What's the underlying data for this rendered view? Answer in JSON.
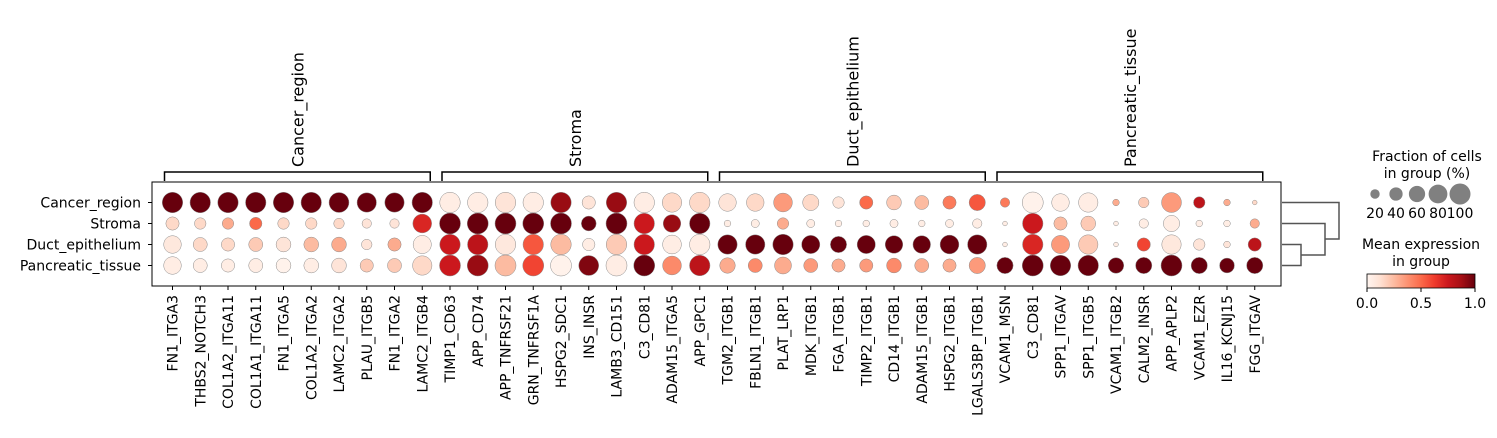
{
  "chart_data": {
    "type": "dotplot",
    "groups": [
      "Cancer_region",
      "Stroma",
      "Duct_epithelium",
      "Pancreatic_tissue"
    ],
    "genes": [
      "FN1_ITGA3",
      "THBS2_NOTCH3",
      "COL1A2_ITGA11",
      "COL1A1_ITGA11",
      "FN1_ITGA5",
      "COL1A2_ITGA2",
      "LAMC2_ITGA2",
      "PLAU_ITGB5",
      "FN1_ITGA2",
      "LAMC2_ITGB4",
      "TIMP1_CD63",
      "APP_CD74",
      "APP_TNFRSF21",
      "GRN_TNFRSF1A",
      "HSPG2_SDC1",
      "INS_INSR",
      "LAMB3_CD151",
      "C3_CD81",
      "ADAM15_ITGA5",
      "APP_GPC1",
      "TGM2_ITGB1",
      "FBLN1_ITGB1",
      "PLAT_LRP1",
      "MDK_ITGB1",
      "FGA_ITGB1",
      "TIMP2_ITGB1",
      "CD14_ITGB1",
      "ADAM15_ITGB1",
      "HSPG2_ITGB1",
      "LGALS3BP_ITGB1",
      "VCAM1_MSN",
      "C3_CD81",
      "SPP1_ITGAV",
      "SPP1_ITGB5",
      "VCAM1_ITGB2",
      "CALM2_INSR",
      "APP_APLP2",
      "VCAM1_EZR",
      "IL16_KCNJ15",
      "FGG_ITGAV"
    ],
    "gene_groups": [
      {
        "label": "Cancer_region",
        "start": 0,
        "end": 9
      },
      {
        "label": "Stroma",
        "start": 10,
        "end": 19
      },
      {
        "label": "Duct_epithelium",
        "start": 20,
        "end": 29
      },
      {
        "label": "Pancreatic_tissue",
        "start": 30,
        "end": 39
      }
    ],
    "fraction_pct": [
      [
        95,
        95,
        95,
        95,
        95,
        95,
        90,
        85,
        85,
        95,
        95,
        95,
        95,
        95,
        95,
        40,
        95,
        95,
        85,
        95,
        70,
        70,
        80,
        60,
        30,
        40,
        50,
        45,
        40,
        60,
        20,
        100,
        70,
        85,
        10,
        25,
        90,
        30,
        10,
        5
      ],
      [
        40,
        30,
        30,
        35,
        30,
        30,
        25,
        20,
        20,
        80,
        100,
        100,
        100,
        100,
        100,
        50,
        100,
        95,
        70,
        95,
        10,
        15,
        30,
        15,
        10,
        10,
        15,
        10,
        15,
        20,
        5,
        95,
        40,
        50,
        5,
        20,
        60,
        10,
        10,
        20
      ],
      [
        70,
        45,
        40,
        45,
        50,
        50,
        50,
        25,
        40,
        75,
        95,
        95,
        95,
        95,
        95,
        35,
        95,
        95,
        80,
        95,
        85,
        85,
        95,
        75,
        60,
        75,
        70,
        70,
        80,
        85,
        5,
        95,
        75,
        85,
        5,
        40,
        85,
        30,
        10,
        40
      ],
      [
        70,
        45,
        40,
        45,
        50,
        50,
        50,
        40,
        45,
        85,
        100,
        100,
        100,
        100,
        100,
        90,
        100,
        100,
        80,
        95,
        55,
        45,
        65,
        45,
        40,
        40,
        50,
        45,
        40,
        60,
        60,
        100,
        95,
        95,
        55,
        60,
        100,
        60,
        50,
        60
      ]
    ],
    "mean_expr": [
      [
        1.0,
        1.0,
        1.0,
        1.0,
        1.0,
        1.0,
        1.0,
        1.0,
        1.0,
        1.0,
        0.05,
        0.05,
        0.1,
        0.05,
        0.9,
        0.1,
        0.9,
        0.05,
        0.15,
        0.15,
        0.1,
        0.15,
        0.35,
        0.15,
        0.1,
        0.5,
        0.2,
        0.25,
        0.45,
        0.55,
        0.45,
        0.02,
        0.05,
        0.05,
        0.3,
        0.2,
        0.35,
        0.8,
        0.3,
        0.15
      ],
      [
        0.15,
        0.15,
        0.3,
        0.5,
        0.15,
        0.15,
        0.15,
        0.1,
        0.1,
        0.7,
        1.0,
        1.0,
        1.0,
        1.0,
        1.0,
        1.0,
        1.0,
        0.75,
        0.9,
        1.0,
        0.05,
        0.05,
        0.3,
        0.05,
        0.05,
        0.05,
        0.05,
        0.05,
        0.05,
        0.05,
        0.05,
        0.75,
        0.25,
        0.2,
        0.05,
        0.05,
        0.05,
        0.05,
        0.05,
        0.3
      ],
      [
        0.08,
        0.15,
        0.15,
        0.2,
        0.1,
        0.25,
        0.3,
        0.1,
        0.3,
        0.05,
        0.75,
        0.8,
        0.08,
        0.55,
        0.25,
        0.05,
        0.2,
        0.75,
        0.05,
        0.05,
        1.0,
        1.0,
        1.0,
        1.0,
        1.0,
        1.0,
        1.0,
        1.0,
        1.0,
        1.0,
        0.05,
        0.7,
        0.35,
        0.2,
        0.05,
        0.6,
        0.08,
        0.1,
        0.1,
        0.8
      ],
      [
        0.05,
        0.05,
        0.05,
        0.05,
        0.02,
        0.05,
        0.1,
        0.2,
        0.2,
        0.15,
        0.75,
        0.9,
        0.25,
        0.6,
        0.02,
        0.95,
        0.05,
        1.0,
        0.4,
        0.8,
        0.3,
        0.4,
        0.3,
        0.35,
        0.3,
        0.35,
        0.4,
        0.3,
        0.3,
        0.35,
        1.0,
        1.0,
        1.0,
        1.0,
        1.0,
        1.0,
        1.0,
        1.0,
        1.0,
        1.0
      ]
    ],
    "dendrogram": "((Cancer_region),(Stroma,(Duct_epithelium,Pancreatic_tissue)))",
    "size_legend": {
      "title_line1": "Fraction of cells",
      "title_line2": "in group (%)",
      "ticks": [
        "20",
        "40",
        "60",
        "80",
        "100"
      ],
      "values": [
        20,
        40,
        60,
        80,
        100
      ]
    },
    "color_legend": {
      "title_line1": "Mean expression",
      "title_line2": "in group",
      "ticks": [
        "0.0",
        "0.5",
        "1.0"
      ],
      "colormap": "Reds",
      "range": [
        0,
        1
      ]
    },
    "colors": {
      "edge": "#8c8c8c",
      "bracket": "#000000",
      "size_legend_dot": "#808080",
      "dendrogram": "#555555",
      "reds": [
        "#fff5f0",
        "#fee0d2",
        "#fcbba1",
        "#fc9272",
        "#fb6a4a",
        "#ef3b2c",
        "#cb181d",
        "#a50f15",
        "#67000d"
      ]
    }
  }
}
